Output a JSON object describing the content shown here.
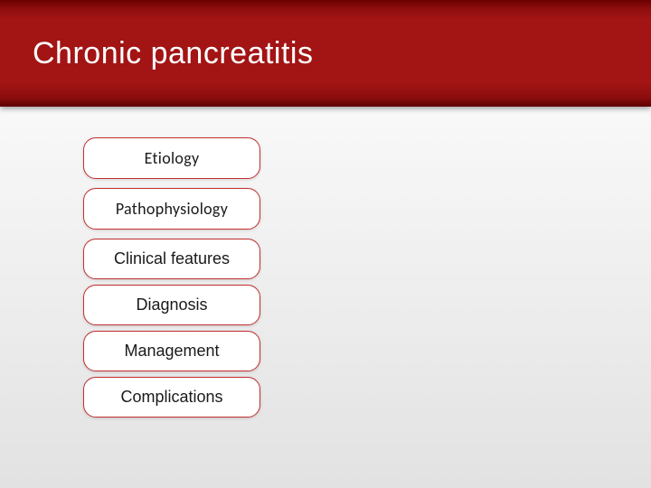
{
  "slide": {
    "title": "Chronic pancreatitis",
    "header_gradient_top": "#6b0000",
    "header_gradient_mid": "#a31414",
    "header_gradient_bottom": "#5e0000",
    "body_gradient_top": "#ffffff",
    "body_gradient_bottom": "#e2e2e2",
    "title_color": "#ffffff",
    "title_fontsize": 34
  },
  "items": [
    {
      "label": "Etiology"
    },
    {
      "label": "Pathophysiology"
    },
    {
      "label": "Clinical features"
    },
    {
      "label": "Diagnosis"
    },
    {
      "label": "Management"
    },
    {
      "label": "Complications"
    }
  ],
  "pill_style": {
    "background": "#ffffff",
    "border_color": "#c23030",
    "border_radius": 14,
    "text_color": "#1a1a1a",
    "fontsize": 18,
    "width": 196,
    "height": 46
  }
}
